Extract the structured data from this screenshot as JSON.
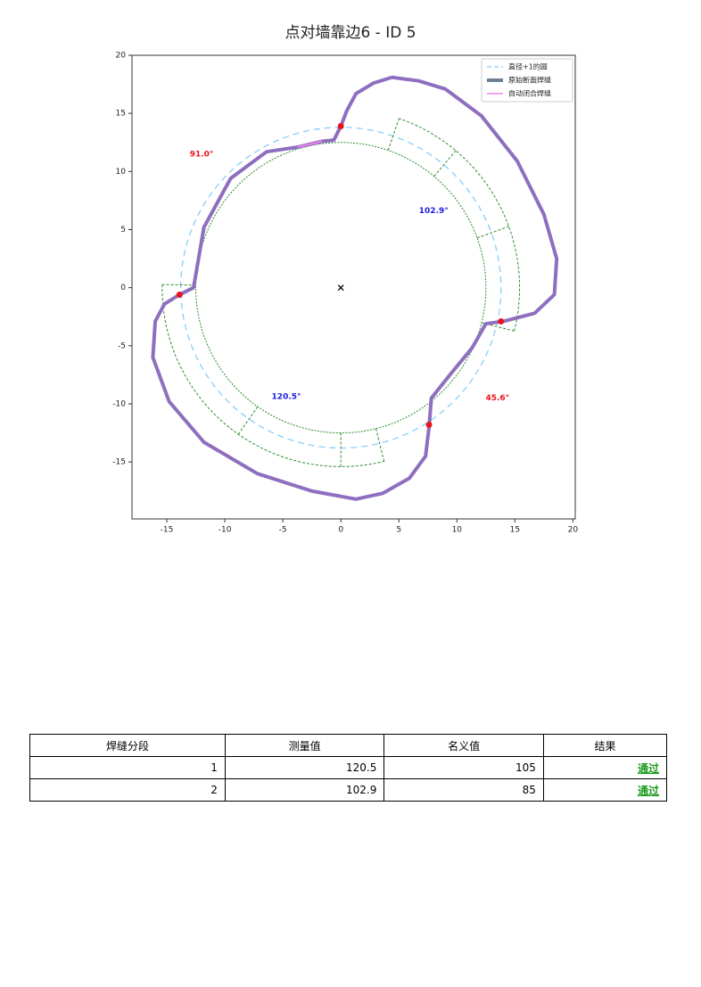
{
  "title": "点对墙靠边6 - ID 5",
  "chart_data": {
    "type": "line",
    "xlim": [
      -18,
      20.2
    ],
    "ylim": [
      -19.9,
      20
    ],
    "xticks": [
      -15,
      -10,
      -5,
      0,
      5,
      10,
      15,
      20
    ],
    "yticks": [
      -15,
      -10,
      -5,
      0,
      5,
      10,
      15,
      20
    ],
    "circle": {
      "name": "直径+1的圆",
      "color": "#87cefa",
      "r": 13.8
    },
    "inner_circle": {
      "r": 12.5,
      "color": "#2e8b2e"
    },
    "sectors": [
      {
        "r": [
          12.5,
          15.4
        ],
        "angles": [
          -14,
          20,
          50,
          71
        ]
      },
      {
        "r": [
          12.5,
          15.4
        ],
        "angles": [
          179,
          235,
          270,
          284
        ]
      }
    ],
    "series": [
      {
        "name": "原始断面焊缝",
        "color": "#8e6fbf",
        "x": [
          0,
          0.5,
          1.3,
          2.8,
          4.4,
          6.7,
          9,
          12.1,
          15.2,
          17.5,
          18.6,
          18.4,
          16.7,
          14,
          12.5,
          11.3,
          9.4,
          7.8,
          7.6,
          7.3,
          5.9,
          3.6,
          1.3,
          -2.5,
          -7.2,
          -11.8,
          -14.8,
          -16.2,
          -16,
          -15.2,
          -13.9,
          -12.7,
          -12.4,
          -11.8,
          -9.5,
          -6.4,
          -3.7,
          -1.6,
          -0.6,
          0
        ],
        "y": [
          13.9,
          15.2,
          16.7,
          17.6,
          18.1,
          17.8,
          17.1,
          14.8,
          10.9,
          6.3,
          2.5,
          -0.6,
          -2.2,
          -2.9,
          -3.1,
          -5.2,
          -7.5,
          -9.5,
          -12,
          -14.5,
          -16.4,
          -17.7,
          -18.2,
          -17.5,
          -16,
          -13.3,
          -9.8,
          -6,
          -2.9,
          -1.4,
          -0.6,
          0,
          1.7,
          5.2,
          9.4,
          11.7,
          12.1,
          12.6,
          12.7,
          13.9
        ]
      },
      {
        "name": "自动闭合焊缝",
        "color": "#ee82ee",
        "x": [
          -3.7,
          -1.6
        ],
        "y": [
          12.1,
          12.6
        ]
      }
    ],
    "points": {
      "color": "#e8141c",
      "x": [
        0,
        -13.9,
        13.8,
        7.6
      ],
      "y": [
        13.9,
        -0.6,
        -2.9,
        -11.8
      ]
    },
    "center": {
      "x": 0,
      "y": 0
    },
    "annotations": [
      {
        "text": "91.0°",
        "x": -12,
        "y": 11.5,
        "color": "#e8141c"
      },
      {
        "text": "102.9°",
        "x": 8,
        "y": 6.6,
        "color": "#1a1ae0"
      },
      {
        "text": "120.5°",
        "x": -4.7,
        "y": -9.4,
        "color": "#1a1ae0"
      },
      {
        "text": "45.6°",
        "x": 13.5,
        "y": -9.5,
        "color": "#e8141c"
      }
    ]
  },
  "table": {
    "header": [
      "焊缝分段",
      "测量值",
      "名义值",
      "结果"
    ],
    "rows": [
      [
        1,
        120.5,
        105,
        "通过"
      ],
      [
        2,
        102.9,
        85,
        "通过"
      ]
    ]
  }
}
